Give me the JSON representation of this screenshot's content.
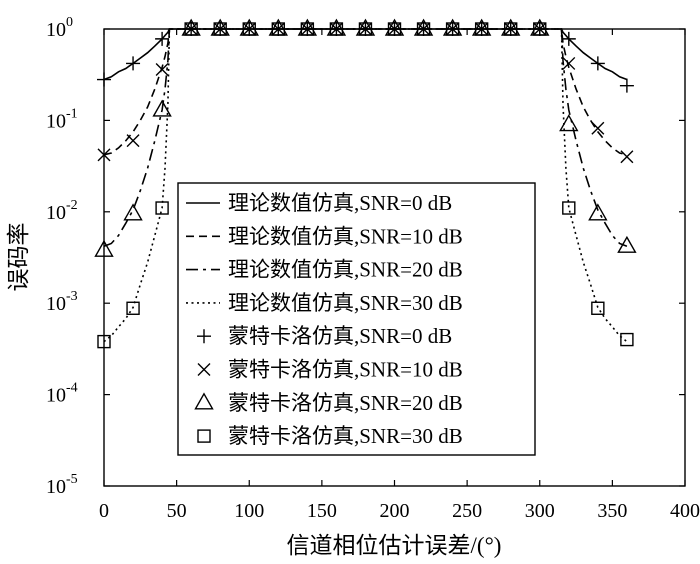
{
  "chart_data": {
    "type": "line",
    "title": "",
    "xlabel": "信道相位估计误差/(°)",
    "ylabel": "误码率",
    "xlim": [
      0,
      400
    ],
    "ylim": [
      1e-05,
      1
    ],
    "yscale": "log",
    "x_ticks": [
      "0",
      "50",
      "100",
      "150",
      "200",
      "250",
      "300",
      "350",
      "400"
    ],
    "y_ticks": [
      {
        "base": "10",
        "exp": "0"
      },
      {
        "base": "10",
        "exp": "-1"
      },
      {
        "base": "10",
        "exp": "-2"
      },
      {
        "base": "10",
        "exp": "-3"
      },
      {
        "base": "10",
        "exp": "-4"
      },
      {
        "base": "10",
        "exp": "-5"
      }
    ],
    "grid": false,
    "legend_position": "center",
    "theory_x": [
      0,
      5,
      10,
      15,
      20,
      25,
      30,
      35,
      40,
      42,
      44,
      45,
      50,
      100,
      150,
      200,
      250,
      300,
      310,
      315,
      316,
      318,
      320,
      325,
      330,
      335,
      340,
      345,
      350,
      355,
      360
    ],
    "series": [
      {
        "name": "理论数值仿真,SNR=0 dB",
        "kind": "theory",
        "line_style": "solid",
        "values": [
          0.28,
          0.3,
          0.34,
          0.37,
          0.42,
          0.48,
          0.55,
          0.65,
          0.78,
          0.85,
          0.92,
          1.0,
          1.0,
          1.0,
          1.0,
          1.0,
          1.0,
          1.0,
          1.0,
          1.0,
          0.92,
          0.85,
          0.78,
          0.65,
          0.55,
          0.48,
          0.42,
          0.37,
          0.34,
          0.3,
          0.28
        ]
      },
      {
        "name": "理论数值仿真,SNR=10 dB",
        "kind": "theory",
        "line_style": "dashed",
        "values": [
          0.042,
          0.044,
          0.05,
          0.06,
          0.075,
          0.1,
          0.14,
          0.22,
          0.38,
          0.5,
          0.7,
          1.0,
          1.0,
          1.0,
          1.0,
          1.0,
          1.0,
          1.0,
          1.0,
          1.0,
          0.7,
          0.5,
          0.38,
          0.22,
          0.14,
          0.1,
          0.075,
          0.06,
          0.05,
          0.044,
          0.042
        ]
      },
      {
        "name": "理论数值仿真,SNR=20 dB",
        "kind": "theory",
        "line_style": "dashdot",
        "values": [
          0.0042,
          0.0045,
          0.0055,
          0.0075,
          0.0105,
          0.017,
          0.03,
          0.06,
          0.13,
          0.22,
          0.45,
          1.0,
          1.0,
          1.0,
          1.0,
          1.0,
          1.0,
          1.0,
          1.0,
          1.0,
          0.45,
          0.22,
          0.13,
          0.06,
          0.03,
          0.017,
          0.0105,
          0.0075,
          0.0055,
          0.0045,
          0.0042
        ]
      },
      {
        "name": "理论数值仿真,SNR=30 dB",
        "kind": "theory",
        "line_style": "dotted",
        "values": [
          0.00038,
          0.00044,
          0.00055,
          0.00068,
          0.0009,
          0.0016,
          0.0028,
          0.0055,
          0.011,
          0.03,
          0.15,
          1.0,
          1.0,
          1.0,
          1.0,
          1.0,
          1.0,
          1.0,
          1.0,
          1.0,
          0.15,
          0.03,
          0.011,
          0.0055,
          0.0028,
          0.0016,
          0.0009,
          0.00068,
          0.00055,
          0.00044,
          0.00038
        ]
      },
      {
        "name": "蒙特卡洛仿真,SNR=0 dB",
        "kind": "simulation",
        "marker": "plus",
        "x": [
          0,
          20,
          40,
          60,
          80,
          100,
          120,
          140,
          160,
          180,
          200,
          220,
          240,
          260,
          280,
          300,
          320,
          340,
          360
        ],
        "values": [
          0.28,
          0.42,
          0.78,
          1.0,
          1.0,
          1.0,
          1.0,
          1.0,
          1.0,
          1.0,
          1.0,
          1.0,
          1.0,
          1.0,
          1.0,
          1.0,
          0.78,
          0.42,
          0.24
        ]
      },
      {
        "name": "蒙特卡洛仿真,SNR=10 dB",
        "kind": "simulation",
        "marker": "cross",
        "x": [
          0,
          20,
          40,
          60,
          80,
          100,
          120,
          140,
          160,
          180,
          200,
          220,
          240,
          260,
          280,
          300,
          320,
          340,
          360
        ],
        "values": [
          0.042,
          0.06,
          0.36,
          1.0,
          1.0,
          1.0,
          1.0,
          1.0,
          1.0,
          1.0,
          1.0,
          1.0,
          1.0,
          1.0,
          1.0,
          1.0,
          0.42,
          0.082,
          0.04
        ]
      },
      {
        "name": "蒙特卡洛仿真,SNR=20 dB",
        "kind": "simulation",
        "marker": "triangle",
        "x": [
          0,
          20,
          40,
          60,
          80,
          100,
          120,
          140,
          160,
          180,
          200,
          220,
          240,
          260,
          280,
          300,
          320,
          340,
          360
        ],
        "values": [
          0.0038,
          0.0095,
          0.13,
          1.0,
          1.0,
          1.0,
          1.0,
          1.0,
          1.0,
          1.0,
          1.0,
          1.0,
          1.0,
          1.0,
          1.0,
          1.0,
          0.09,
          0.0095,
          0.0042
        ]
      },
      {
        "name": "蒙特卡洛仿真,SNR=30 dB",
        "kind": "simulation",
        "marker": "square",
        "x": [
          0,
          20,
          40,
          60,
          80,
          100,
          120,
          140,
          160,
          180,
          200,
          220,
          240,
          260,
          280,
          300,
          320,
          340,
          360
        ],
        "values": [
          0.00038,
          0.00088,
          0.011,
          1.0,
          1.0,
          1.0,
          1.0,
          1.0,
          1.0,
          1.0,
          1.0,
          1.0,
          1.0,
          1.0,
          1.0,
          1.0,
          0.011,
          0.00088,
          0.0004
        ]
      }
    ]
  }
}
